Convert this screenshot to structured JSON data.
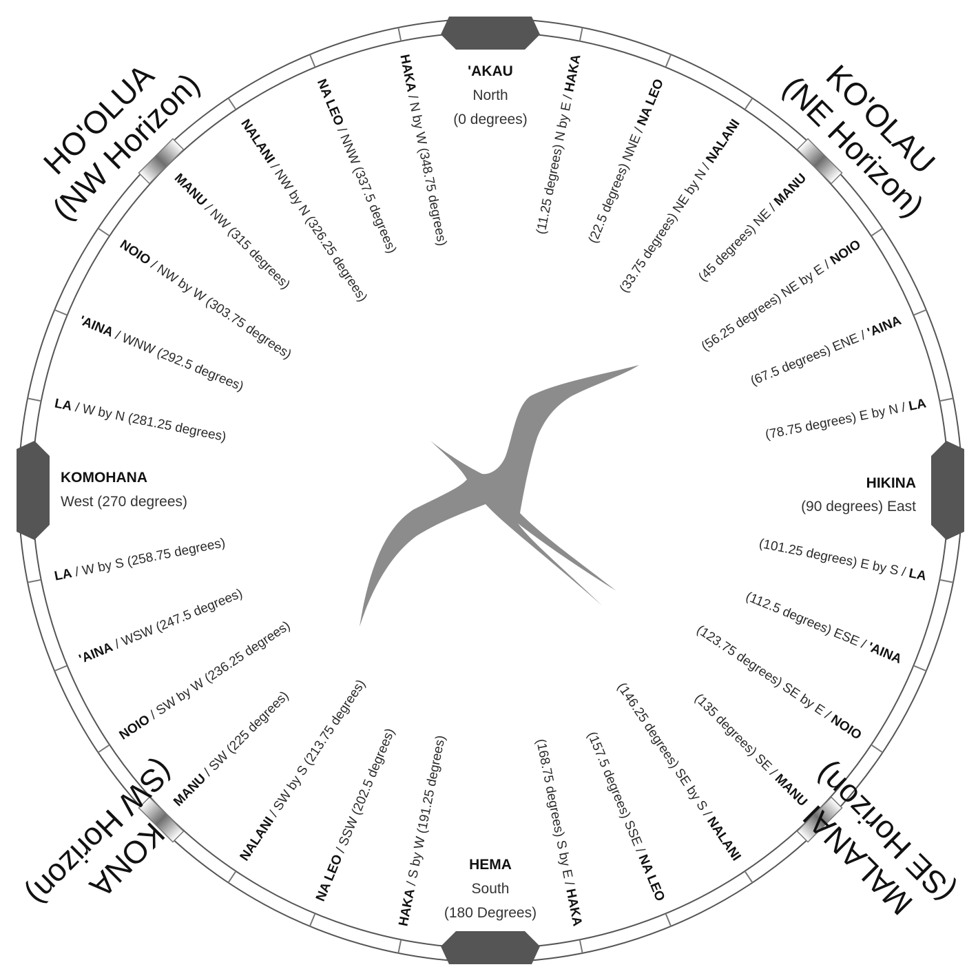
{
  "cardinals": {
    "north": {
      "name": "'AKAU",
      "sub": "North",
      "deg": "(0 degrees)"
    },
    "east": {
      "name": "HIKINA",
      "sub": "(90 degrees) East"
    },
    "south": {
      "name": "HEMA",
      "sub": "South",
      "deg": "(180 Degrees)"
    },
    "west": {
      "name": "KOMOHANA",
      "sub": "West (270 degrees)"
    }
  },
  "quarters": {
    "nw": {
      "name": "HO'OLUA",
      "horizon": "(NW Horizon)"
    },
    "ne": {
      "name": "KO'OLAU",
      "horizon": "(NE Horizon)"
    },
    "se": {
      "name": "MALANAI",
      "horizon": "(SE Horizon)"
    },
    "sw": {
      "name": "KONA",
      "horizon": "(SW Horizon)"
    }
  },
  "houses": [
    {
      "deg": 11.25,
      "name": "HAKA",
      "text": "(11.25 degrees) N by E / "
    },
    {
      "deg": 22.5,
      "name": "NA LEO",
      "text": "(22.5 degrees) NNE / "
    },
    {
      "deg": 33.75,
      "name": "NALANI",
      "text": "(33.75 degrees) NE by N / "
    },
    {
      "deg": 45,
      "name": "MANU",
      "text": "(45 degrees) NE / "
    },
    {
      "deg": 56.25,
      "name": "NOIO",
      "text": "(56.25 degrees) NE by E / "
    },
    {
      "deg": 67.5,
      "name": "'AINA",
      "text": "(67.5 degrees) ENE / "
    },
    {
      "deg": 78.75,
      "name": "LA",
      "text": "(78.75 degrees) E by N / "
    },
    {
      "deg": 101.25,
      "name": "LA",
      "text": "(101.25 degrees) E by S / "
    },
    {
      "deg": 112.5,
      "name": "'AINA",
      "text": "(112.5 degrees) ESE / "
    },
    {
      "deg": 123.75,
      "name": "NOIO",
      "text": "(123.75 degrees) SE by E / "
    },
    {
      "deg": 135,
      "name": "MANU",
      "text": "(135 degrees) SE / "
    },
    {
      "deg": 146.25,
      "name": "NALANI",
      "text": "(146.25 degrees) SE by S / "
    },
    {
      "deg": 157.5,
      "name": "NA LEO",
      "text": "(157.5 degrees) SSE / "
    },
    {
      "deg": 168.75,
      "name": "HAKA",
      "text": "(168.75 degrees) S by E / "
    },
    {
      "deg": 191.25,
      "name": "HAKA",
      "text": " / S by W (191.25 degrees)"
    },
    {
      "deg": 202.5,
      "name": "NA LEO",
      "text": " / SSW (202.5 degrees)"
    },
    {
      "deg": 213.75,
      "name": "NALANI",
      "text": " / SW by S (213.75 degrees)"
    },
    {
      "deg": 225,
      "name": "MANU",
      "text": " / SW (225 degrees)"
    },
    {
      "deg": 236.25,
      "name": "NOIO",
      "text": " / SW by W (236.25 degrees)"
    },
    {
      "deg": 247.5,
      "name": "'AINA",
      "text": " / WSW (247.5 degrees)"
    },
    {
      "deg": 258.75,
      "name": "LA",
      "text": " / W by S (258.75 degrees)"
    },
    {
      "deg": 281.25,
      "name": "LA",
      "text": " / W by N (281.25 degrees)"
    },
    {
      "deg": 292.5,
      "name": "'AINA",
      "text": " / WNW (292.5 degrees)"
    },
    {
      "deg": 303.75,
      "name": "NOIO",
      "text": " / NW by W (303.75 degrees)"
    },
    {
      "deg": 315,
      "name": "MANU",
      "text": " / NW (315 degrees)"
    },
    {
      "deg": 326.25,
      "name": "NALANI",
      "text": " / NW by N (326.25 degrees)"
    },
    {
      "deg": 337.5,
      "name": "NA LEO",
      "text": " / NNW (337.5 degrees)"
    },
    {
      "deg": 348.75,
      "name": "HAKA",
      "text": " / N by W (348.75 degrees)"
    }
  ],
  "colors": {
    "rim": "#555555",
    "marker": "#555555",
    "bird": "#8c8c8c",
    "text": "#111111"
  },
  "icons": {
    "center": "frigate-bird-icon"
  }
}
